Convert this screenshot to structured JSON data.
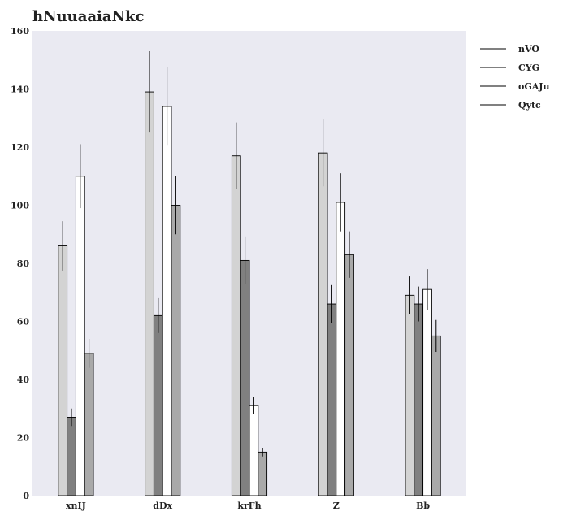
{
  "chart_data": {
    "type": "bar",
    "title": "hNuuaaiaNkc",
    "xlabel": "",
    "ylabel": "",
    "categories": [
      "xnIJ",
      "dDx",
      "krFh",
      "Z",
      "Bb"
    ],
    "ylim": [
      0,
      160
    ],
    "yticks": [
      0,
      20,
      40,
      60,
      80,
      100,
      120,
      140,
      160
    ],
    "grid": false,
    "legend_position": "top-right, outside plot",
    "error_bars": true,
    "series": [
      {
        "name": "nVO",
        "color": "#d3d3d3",
        "values": [
          86,
          139,
          117,
          118,
          69
        ],
        "errors": [
          8.5,
          14,
          11.5,
          11.5,
          6.5
        ]
      },
      {
        "name": "CYG",
        "color": "#808080",
        "values": [
          27,
          62,
          81,
          66,
          66
        ],
        "errors": [
          3,
          6,
          8,
          6.5,
          6
        ]
      },
      {
        "name": "oGAJu",
        "color": "#ffffff",
        "values": [
          110,
          134,
          31,
          101,
          71
        ],
        "errors": [
          11,
          13.5,
          3,
          10,
          7
        ]
      },
      {
        "name": "Qytc",
        "color": "#a9a9a9",
        "values": [
          49,
          100,
          15,
          83,
          55
        ],
        "errors": [
          5,
          10,
          1.5,
          8,
          5.5
        ]
      }
    ]
  }
}
